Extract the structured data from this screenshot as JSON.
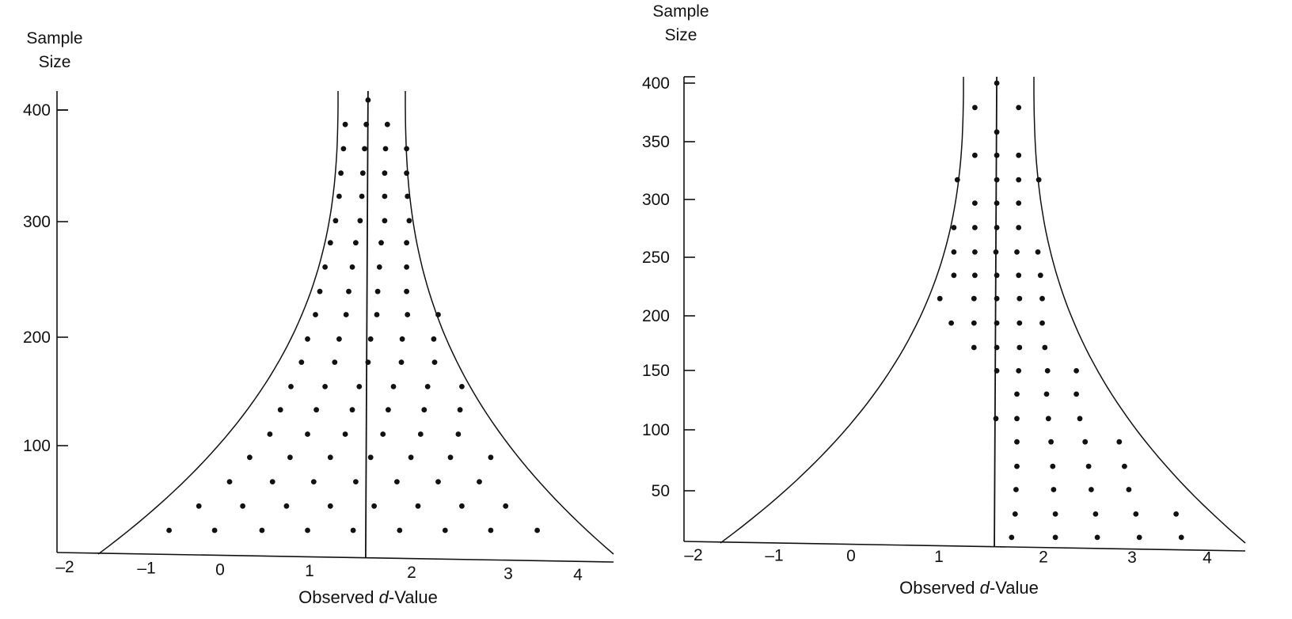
{
  "chart_data": [
    {
      "type": "scatter",
      "title": "",
      "ylabel_lines": [
        "Sample",
        "Size"
      ],
      "xlabel_pre": "Observed ",
      "xlabel_italic": "d",
      "xlabel_post": "-Value",
      "x_tick_labels": [
        "–2",
        "–1",
        "0",
        "1",
        "2",
        "3",
        "4"
      ],
      "y_tick_labels": [
        "400",
        "300",
        "200",
        "100"
      ],
      "ylim": [
        0,
        420
      ],
      "xlim": [
        -2.1,
        4.4
      ],
      "center_line_x": 1.55,
      "funnel_lower_left_x": -1.6,
      "funnel_lower_right_x": 4.35,
      "grid": false,
      "rows": [
        {
          "n": 20,
          "x": [
            -0.72,
            -0.2,
            0.34,
            0.86,
            1.38,
            1.91,
            2.43,
            2.95,
            3.48
          ]
        },
        {
          "n": 42,
          "x": [
            -0.38,
            0.12,
            0.62,
            1.12,
            1.62,
            2.12,
            2.62,
            3.12
          ]
        },
        {
          "n": 64,
          "x": [
            -0.03,
            0.46,
            0.93,
            1.41,
            1.88,
            2.35,
            2.82
          ]
        },
        {
          "n": 86,
          "x": [
            0.2,
            0.66,
            1.12,
            1.58,
            2.04,
            2.49,
            2.95
          ]
        },
        {
          "n": 107,
          "x": [
            0.43,
            0.86,
            1.29,
            1.72,
            2.15,
            2.58
          ]
        },
        {
          "n": 129,
          "x": [
            0.55,
            0.96,
            1.37,
            1.78,
            2.19,
            2.6
          ]
        },
        {
          "n": 150,
          "x": [
            0.67,
            1.06,
            1.45,
            1.84,
            2.23,
            2.62
          ]
        },
        {
          "n": 172,
          "x": [
            0.79,
            1.17,
            1.55,
            1.93,
            2.31
          ]
        },
        {
          "n": 193,
          "x": [
            0.86,
            1.22,
            1.58,
            1.94,
            2.3
          ]
        },
        {
          "n": 215,
          "x": [
            0.95,
            1.3,
            1.65,
            2.0,
            2.35
          ]
        },
        {
          "n": 236,
          "x": [
            1.0,
            1.33,
            1.66,
            1.99
          ]
        },
        {
          "n": 258,
          "x": [
            1.06,
            1.37,
            1.68,
            1.99
          ]
        },
        {
          "n": 280,
          "x": [
            1.12,
            1.41,
            1.7,
            1.99
          ]
        },
        {
          "n": 300,
          "x": [
            1.18,
            1.46,
            1.74,
            2.02
          ]
        },
        {
          "n": 322,
          "x": [
            1.22,
            1.48,
            1.74,
            2.0
          ]
        },
        {
          "n": 343,
          "x": [
            1.24,
            1.49,
            1.74,
            1.99
          ]
        },
        {
          "n": 365,
          "x": [
            1.27,
            1.51,
            1.75,
            1.99
          ]
        },
        {
          "n": 387,
          "x": [
            1.29,
            1.53,
            1.77
          ]
        },
        {
          "n": 409,
          "x": [
            1.55
          ]
        }
      ]
    },
    {
      "type": "scatter",
      "title": "",
      "ylabel_lines": [
        "Sample",
        "Size"
      ],
      "xlabel_pre": "Observed ",
      "xlabel_italic": "d",
      "xlabel_post": "-Value",
      "x_tick_labels": [
        "–2",
        "–1",
        "0",
        "1",
        "2",
        "3",
        "4"
      ],
      "y_tick_labels": [
        "400",
        "350",
        "300",
        "250",
        "200",
        "150",
        "100",
        "50"
      ],
      "ylim": [
        0,
        405
      ],
      "xlim": [
        -2.0,
        4.4
      ],
      "center_line_x": 1.55,
      "funnel_lower_left_x": -1.6,
      "funnel_lower_right_x": 4.4,
      "grid": false,
      "rows": [
        {
          "n": 10,
          "x": [
            1.72,
            2.22,
            2.7,
            3.18,
            3.66
          ]
        },
        {
          "n": 30,
          "x": [
            1.76,
            2.22,
            2.68,
            3.14,
            3.6
          ]
        },
        {
          "n": 51,
          "x": [
            1.77,
            2.2,
            2.63,
            3.06
          ]
        },
        {
          "n": 71,
          "x": [
            1.78,
            2.19,
            2.6,
            3.01
          ]
        },
        {
          "n": 92,
          "x": [
            1.78,
            2.17,
            2.56,
            2.95
          ]
        },
        {
          "n": 112,
          "x": [
            1.54,
            1.78,
            2.14,
            2.5
          ]
        },
        {
          "n": 133,
          "x": [
            1.78,
            2.12,
            2.46
          ]
        },
        {
          "n": 153,
          "x": [
            1.55,
            1.8,
            2.13,
            2.46
          ]
        },
        {
          "n": 173,
          "x": [
            1.29,
            1.55,
            1.81,
            2.1
          ]
        },
        {
          "n": 194,
          "x": [
            1.03,
            1.29,
            1.55,
            1.81,
            2.07
          ]
        },
        {
          "n": 215,
          "x": [
            0.9,
            1.29,
            1.55,
            1.81,
            2.07
          ]
        },
        {
          "n": 235,
          "x": [
            1.06,
            1.3,
            1.55,
            1.8,
            2.05
          ]
        },
        {
          "n": 255,
          "x": [
            1.06,
            1.3,
            1.54,
            1.78,
            2.02
          ]
        },
        {
          "n": 276,
          "x": [
            1.06,
            1.3,
            1.55,
            1.8
          ]
        },
        {
          "n": 297,
          "x": [
            1.3,
            1.55,
            1.8
          ]
        },
        {
          "n": 317,
          "x": [
            1.1,
            1.55,
            1.8,
            2.03
          ]
        },
        {
          "n": 338,
          "x": [
            1.3,
            1.55,
            1.8
          ]
        },
        {
          "n": 358,
          "x": [
            1.55
          ]
        },
        {
          "n": 379,
          "x": [
            1.3,
            1.8
          ]
        },
        {
          "n": 400,
          "x": [
            1.55
          ]
        }
      ]
    }
  ]
}
